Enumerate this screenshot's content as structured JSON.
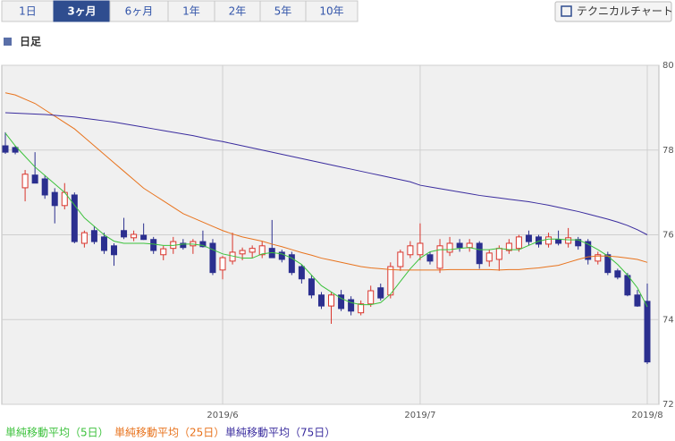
{
  "tabs": [
    "1日",
    "3ヶ月",
    "6ヶ月",
    "1年",
    "2年",
    "5年",
    "10年"
  ],
  "button": "テクニカルチャート",
  "section_title": "日足",
  "chart_data": {
    "type": "candlestick",
    "categories": [
      null,
      null,
      null,
      null,
      null,
      null,
      null,
      null,
      null,
      null,
      null,
      null,
      null,
      null,
      null,
      null,
      null,
      null,
      null,
      null,
      null,
      null,
      "2019/6",
      null,
      null,
      null,
      null,
      null,
      null,
      null,
      null,
      null,
      null,
      null,
      null,
      null,
      null,
      null,
      null,
      null,
      null,
      null,
      "2019/7",
      null,
      null,
      null,
      null,
      null,
      null,
      null,
      null,
      null,
      null,
      null,
      null,
      null,
      null,
      null,
      null,
      null,
      null,
      null,
      null,
      null,
      null,
      "2019/8"
    ],
    "open": [
      78.1,
      78.06,
      77.11,
      77.41,
      77.32,
      77.0,
      76.69,
      76.94,
      75.8,
      76.1,
      75.95,
      75.74,
      76.1,
      75.93,
      75.99,
      75.89,
      75.53,
      75.68,
      75.8,
      75.74,
      75.84,
      75.8,
      75.17,
      75.38,
      75.55,
      75.59,
      75.53,
      75.68,
      75.59,
      75.53,
      75.25,
      74.96,
      74.58,
      74.32,
      74.58,
      74.47,
      74.16,
      74.37,
      74.75,
      74.58,
      75.25,
      75.53,
      75.53,
      75.53,
      75.21,
      75.59,
      75.8,
      75.7,
      75.8,
      75.38,
      75.42,
      75.63,
      75.68,
      75.99,
      75.95,
      75.78,
      75.89,
      75.8,
      75.89,
      75.84,
      75.38,
      75.53,
      75.15,
      75.04,
      74.58,
      74.43
    ],
    "high": [
      78.42,
      78.1,
      77.53,
      77.95,
      77.4,
      77.1,
      77.22,
      77.0,
      76.1,
      76.2,
      76.05,
      75.8,
      76.4,
      76.1,
      76.27,
      75.95,
      75.74,
      75.95,
      75.9,
      75.9,
      76.1,
      75.9,
      75.5,
      76.05,
      75.7,
      75.75,
      75.85,
      76.35,
      75.65,
      75.6,
      75.3,
      75.05,
      74.65,
      74.65,
      74.7,
      74.55,
      74.45,
      74.8,
      74.85,
      75.35,
      75.65,
      75.85,
      76.27,
      75.6,
      75.9,
      75.95,
      75.9,
      75.9,
      75.85,
      75.65,
      75.75,
      75.9,
      76.0,
      76.1,
      76.0,
      76.05,
      76.1,
      76.16,
      75.95,
      75.9,
      75.6,
      75.6,
      75.2,
      75.1,
      74.7,
      74.85
    ],
    "low": [
      77.91,
      77.9,
      76.79,
      77.25,
      76.85,
      76.27,
      76.6,
      75.8,
      75.7,
      75.78,
      75.55,
      75.27,
      75.9,
      75.85,
      75.88,
      75.55,
      75.4,
      75.55,
      75.65,
      75.55,
      75.7,
      75.05,
      74.95,
      75.3,
      75.4,
      75.45,
      75.45,
      75.5,
      75.35,
      75.05,
      74.85,
      74.5,
      74.25,
      73.9,
      74.2,
      74.1,
      74.1,
      74.3,
      74.45,
      74.5,
      75.15,
      75.45,
      75.4,
      75.3,
      75.1,
      75.5,
      75.6,
      75.6,
      75.2,
      75.25,
      75.15,
      75.55,
      75.6,
      75.75,
      75.7,
      75.7,
      75.75,
      75.7,
      75.65,
      75.3,
      75.3,
      75.05,
      74.95,
      74.55,
      74.3,
      72.95
    ],
    "close": [
      77.95,
      77.95,
      77.43,
      77.22,
      76.94,
      76.69,
      77.0,
      75.84,
      76.05,
      75.84,
      75.63,
      75.53,
      75.95,
      76.01,
      75.89,
      75.63,
      75.67,
      75.84,
      75.7,
      75.84,
      75.72,
      75.11,
      75.46,
      75.59,
      75.63,
      75.68,
      75.74,
      75.46,
      75.42,
      75.11,
      74.96,
      74.58,
      74.32,
      74.58,
      74.26,
      74.2,
      74.37,
      74.68,
      74.51,
      75.25,
      75.59,
      75.74,
      75.8,
      75.38,
      75.74,
      75.8,
      75.7,
      75.8,
      75.32,
      75.57,
      75.68,
      75.8,
      75.95,
      75.84,
      75.78,
      75.95,
      75.8,
      75.93,
      75.74,
      75.42,
      75.53,
      75.11,
      75.0,
      74.58,
      74.32,
      73.0
    ],
    "up_color": "#d9342b",
    "down_color": "#2b2f8f",
    "series": [
      {
        "name": "単純移動平均（5日）",
        "color": "#3cc23c",
        "values": [
          78.4,
          78.1,
          77.85,
          77.6,
          77.4,
          77.2,
          77.0,
          76.7,
          76.4,
          76.2,
          76.0,
          75.85,
          75.8,
          75.8,
          75.8,
          75.78,
          75.75,
          75.75,
          75.78,
          75.78,
          75.75,
          75.65,
          75.55,
          75.5,
          75.45,
          75.45,
          75.55,
          75.58,
          75.55,
          75.45,
          75.3,
          75.05,
          74.8,
          74.65,
          74.5,
          74.4,
          74.35,
          74.35,
          74.4,
          74.6,
          74.9,
          75.2,
          75.45,
          75.6,
          75.65,
          75.65,
          75.68,
          75.7,
          75.65,
          75.65,
          75.68,
          75.65,
          75.65,
          75.75,
          75.85,
          75.9,
          75.9,
          75.88,
          75.88,
          75.78,
          75.65,
          75.5,
          75.3,
          75.05,
          74.75,
          74.3
        ]
      },
      {
        "name": "単純移動平均（25日）",
        "color": "#e8731d",
        "values": [
          79.35,
          79.3,
          79.2,
          79.1,
          78.95,
          78.8,
          78.65,
          78.5,
          78.3,
          78.1,
          77.9,
          77.7,
          77.5,
          77.3,
          77.1,
          76.95,
          76.8,
          76.65,
          76.5,
          76.4,
          76.3,
          76.2,
          76.1,
          76.02,
          75.95,
          75.9,
          75.85,
          75.78,
          75.72,
          75.65,
          75.58,
          75.52,
          75.45,
          75.4,
          75.35,
          75.3,
          75.25,
          75.22,
          75.2,
          75.18,
          75.17,
          75.17,
          75.17,
          75.17,
          75.17,
          75.18,
          75.18,
          75.18,
          75.18,
          75.18,
          75.17,
          75.18,
          75.18,
          75.2,
          75.22,
          75.25,
          75.28,
          75.35,
          75.42,
          75.48,
          75.5,
          75.5,
          75.48,
          75.45,
          75.42,
          75.35
        ]
      },
      {
        "name": "単純移動平均（75日）",
        "color": "#3a2c9e",
        "values": [
          78.88,
          78.87,
          78.86,
          78.85,
          78.84,
          78.82,
          78.8,
          78.78,
          78.75,
          78.72,
          78.69,
          78.66,
          78.62,
          78.58,
          78.54,
          78.5,
          78.46,
          78.42,
          78.38,
          78.34,
          78.29,
          78.24,
          78.2,
          78.15,
          78.1,
          78.05,
          78.0,
          77.95,
          77.9,
          77.85,
          77.8,
          77.75,
          77.7,
          77.65,
          77.6,
          77.55,
          77.5,
          77.45,
          77.4,
          77.35,
          77.3,
          77.25,
          77.17,
          77.13,
          77.09,
          77.05,
          77.01,
          76.97,
          76.93,
          76.9,
          76.87,
          76.84,
          76.81,
          76.78,
          76.74,
          76.7,
          76.65,
          76.6,
          76.55,
          76.49,
          76.43,
          76.37,
          76.3,
          76.22,
          76.12,
          76.0
        ]
      }
    ],
    "ylim": [
      72,
      80
    ],
    "yticks": [
      72,
      74,
      76,
      78,
      80
    ],
    "grid": true
  }
}
